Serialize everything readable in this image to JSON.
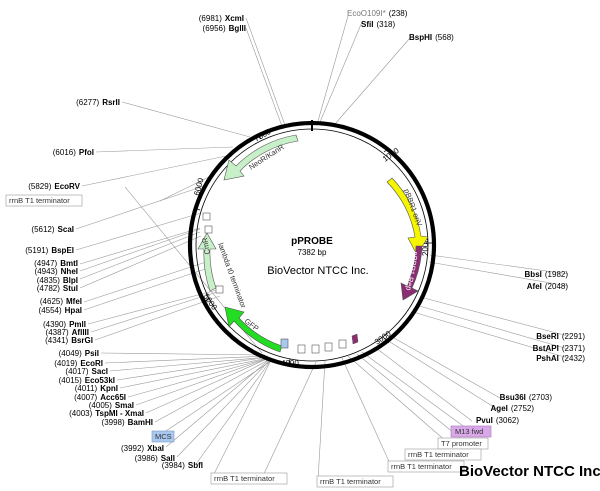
{
  "plasmid": {
    "name": "pPROBE",
    "size": "7382 bp",
    "company": "BioVector NTCC Inc."
  },
  "brand": "BioVector NTCC Inc.",
  "ticks": [
    "1000",
    "2000",
    "3000",
    "4000",
    "5000",
    "6000",
    "7000"
  ],
  "features": {
    "neor": "NeoR/KanR",
    "ori": "pBBR1 oriV",
    "rep": "pBBR1 Rep",
    "cmr": "CmR",
    "lambda": "lambda t0 terminator",
    "gfp": "GFP"
  },
  "sites_right": [
    {
      "name": "EcoO109I*",
      "pos": "(238)"
    },
    {
      "name": "SfiI",
      "pos": "(318)"
    },
    {
      "name": "BspHI",
      "pos": "(568)"
    },
    {
      "name": "BbsI",
      "pos": "(1982)"
    },
    {
      "name": "AfeI",
      "pos": "(2048)"
    },
    {
      "name": "BseRI",
      "pos": "(2291)"
    },
    {
      "name": "BstAPI",
      "pos": "(2371)"
    },
    {
      "name": "PshAI",
      "pos": "(2432)"
    },
    {
      "name": "Bsu36I",
      "pos": "(2703)"
    },
    {
      "name": "AgeI",
      "pos": "(2752)"
    },
    {
      "name": "PvuI",
      "pos": "(3062)"
    }
  ],
  "sites_left": [
    {
      "name": "XcmI",
      "pos": "(6981)"
    },
    {
      "name": "BglII",
      "pos": "(6956)"
    },
    {
      "name": "RsrII",
      "pos": "(6277)"
    },
    {
      "name": "PfoI",
      "pos": "(6016)"
    },
    {
      "name": "EcoRV",
      "pos": "(5829)"
    },
    {
      "name": "ScaI",
      "pos": "(5612)"
    },
    {
      "name": "BspEI",
      "pos": "(5191)"
    },
    {
      "name": "BmtI",
      "pos": "(4947)"
    },
    {
      "name": "NheI",
      "pos": "(4943)"
    },
    {
      "name": "BlpI",
      "pos": "(4835)"
    },
    {
      "name": "StuI",
      "pos": "(4782)"
    },
    {
      "name": "MfeI",
      "pos": "(4625)"
    },
    {
      "name": "HpaI",
      "pos": "(4554)"
    },
    {
      "name": "PmlI",
      "pos": "(4390)"
    },
    {
      "name": "AflIII",
      "pos": "(4387)"
    },
    {
      "name": "BsrGI",
      "pos": "(4341)"
    },
    {
      "name": "PsiI",
      "pos": "(4049)"
    },
    {
      "name": "EcoRI",
      "pos": "(4019)"
    },
    {
      "name": "SacI",
      "pos": "(4017)"
    },
    {
      "name": "Eco53kI",
      "pos": "(4015)"
    },
    {
      "name": "KpnI",
      "pos": "(4011)"
    },
    {
      "name": "Acc65I",
      "pos": "(4007)"
    },
    {
      "name": "SmaI",
      "pos": "(4005)"
    },
    {
      "name": "TspMI - XmaI",
      "pos": "(4003)"
    },
    {
      "name": "BamHI",
      "pos": "(3998)"
    },
    {
      "name": "XbaI",
      "pos": "(3992)"
    },
    {
      "name": "SalI",
      "pos": "(3986)"
    },
    {
      "name": "SbfI",
      "pos": "(3984)"
    }
  ],
  "boxes": {
    "rrnb_left": "rrnB T1 terminator",
    "mcs": "MCS",
    "m13": "M13 fwd",
    "t7": "T7 promoter",
    "rrnb_r1": "rrnB T1 terminator",
    "rrnb_r2": "rrnB T1 terminator",
    "rrnb_b1": "rrnB T1 terminator",
    "rrnb_b2": "rrnB T1 terminator",
    "rrnb_b3": "rrnB T1 terminator"
  },
  "colors": {
    "neor": "#c8f0c8",
    "ori": "#f5f500",
    "rep": "#8b2d72",
    "cmr": "#c8f0c8",
    "gfp": "#22dd22",
    "mcs_box": "#a8c8f0",
    "m13_box": "#d8a8e8"
  }
}
